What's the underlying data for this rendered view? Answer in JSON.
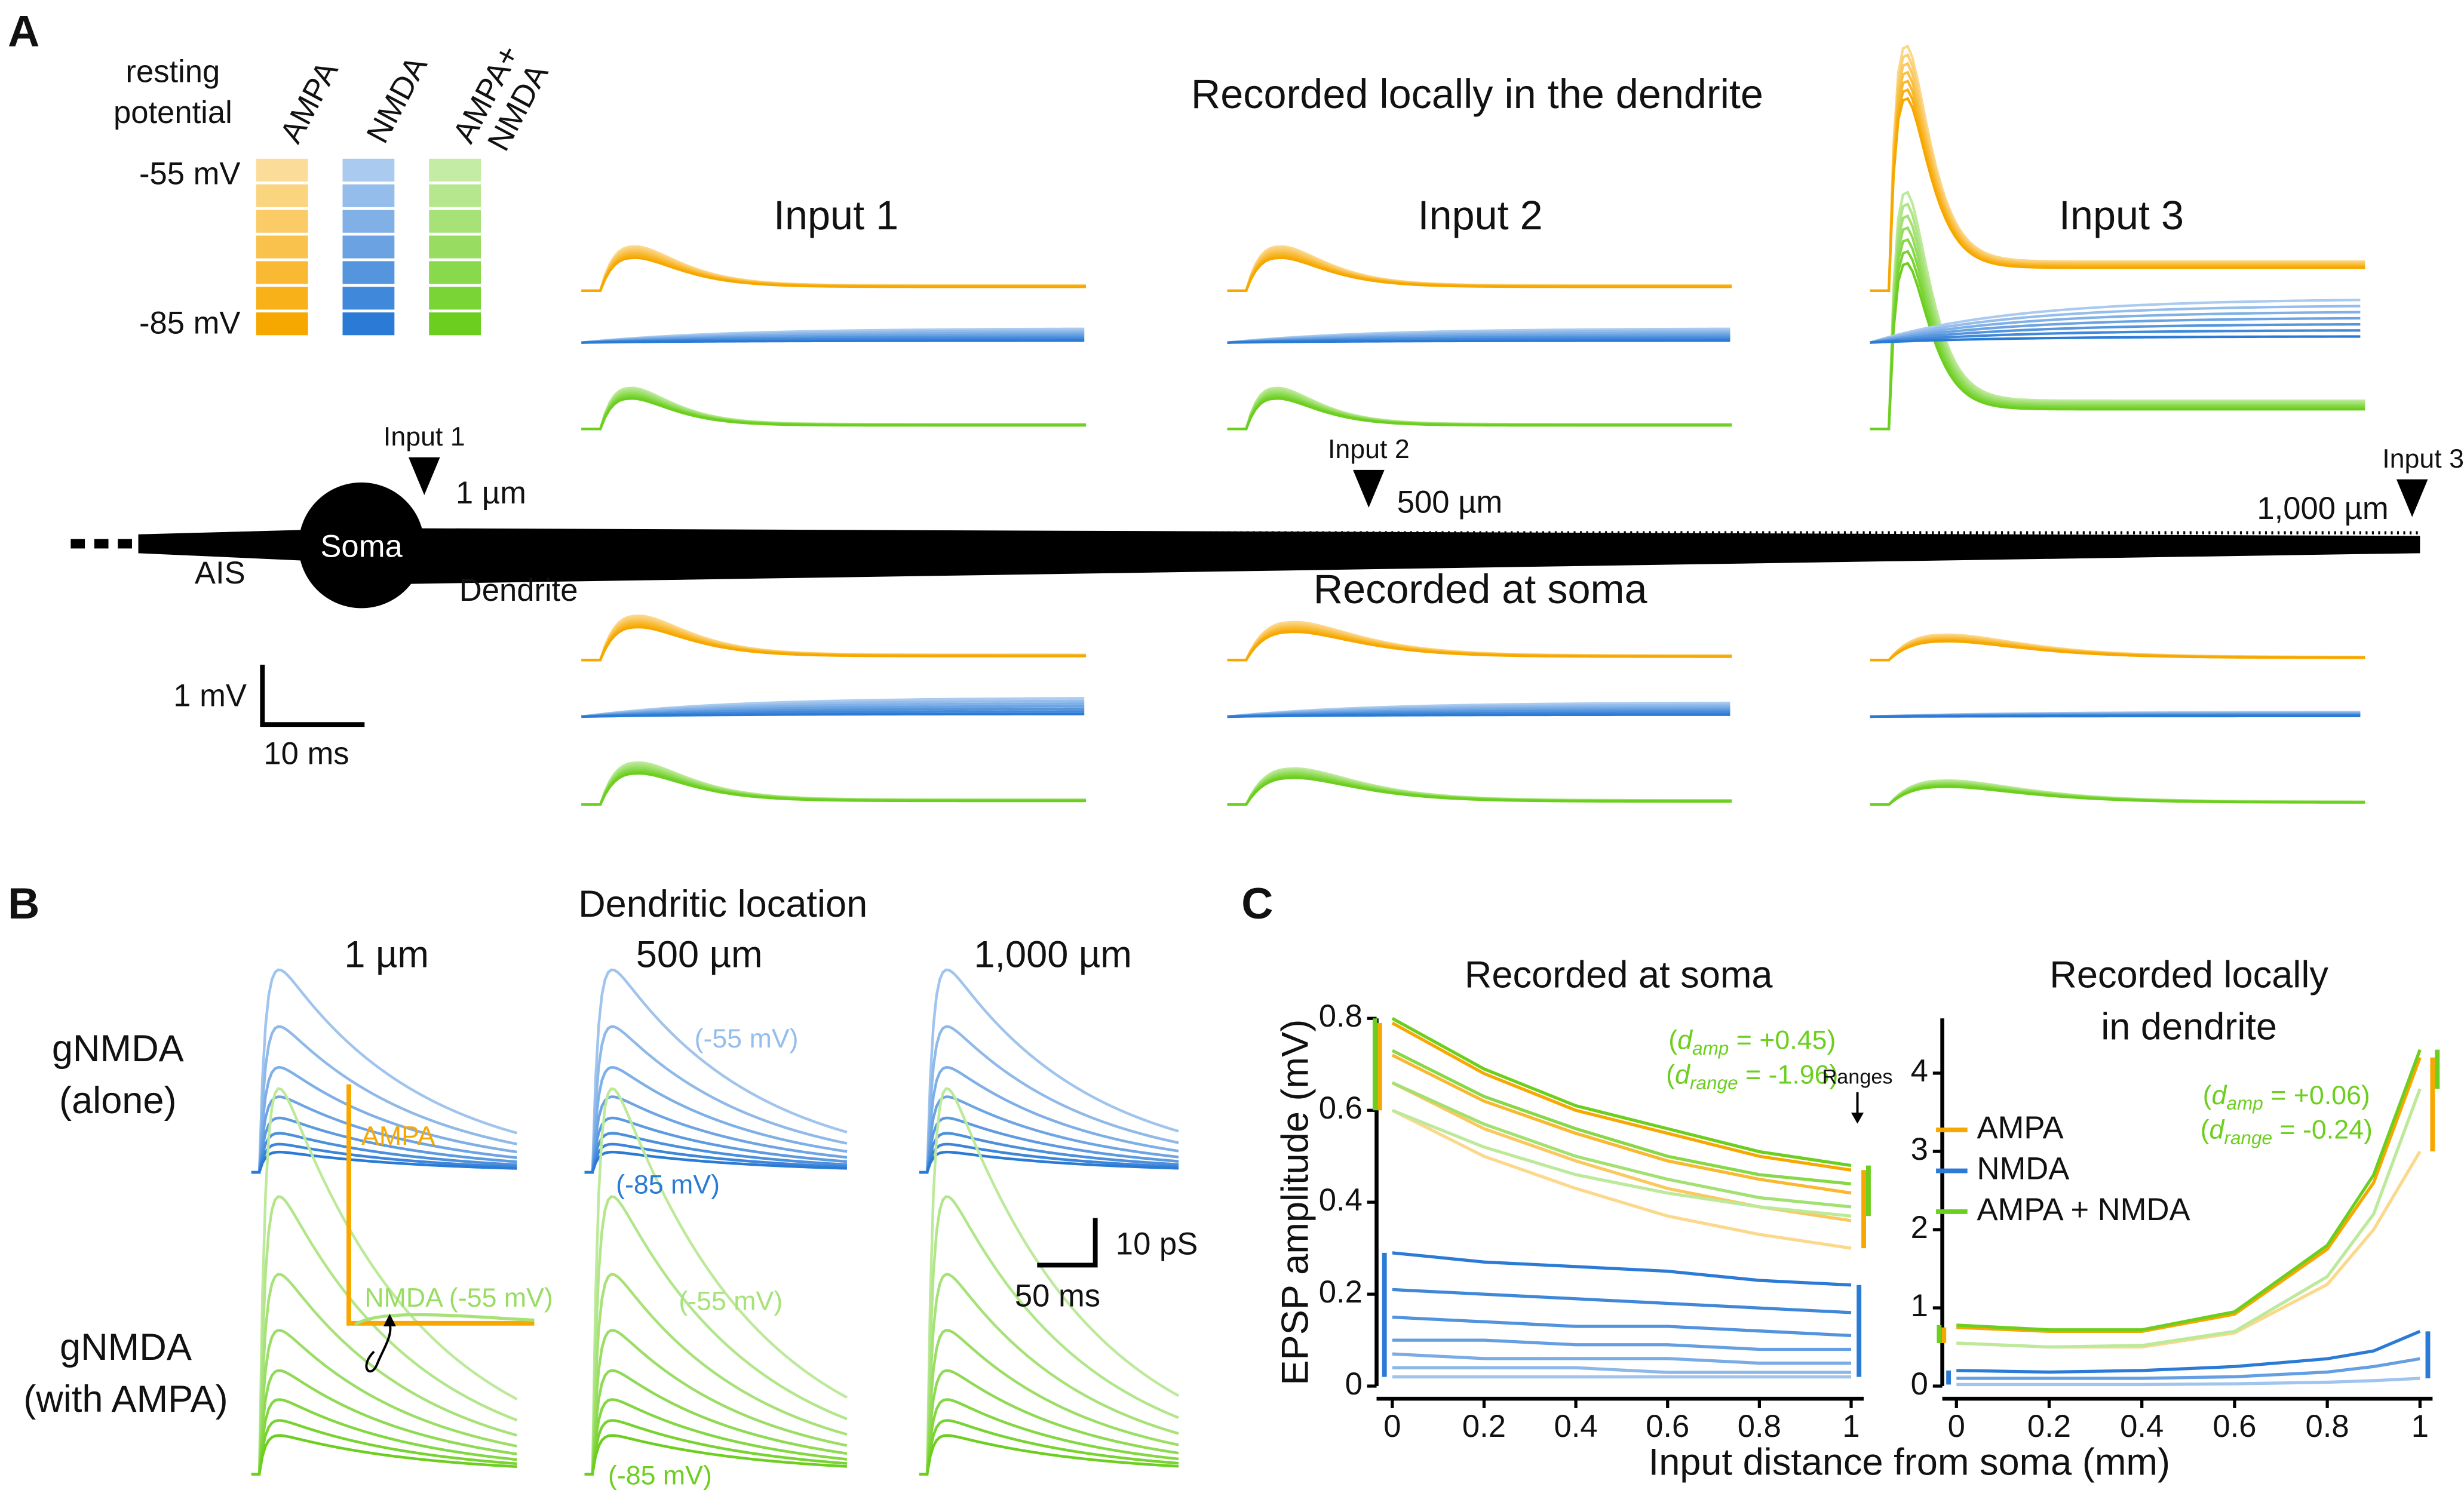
{
  "panel_a": {
    "label": "A",
    "legend_header": [
      "resting",
      "potential"
    ],
    "columns": [
      "AMPA",
      "NMDA",
      [
        "AMPA+",
        "NMDA"
      ]
    ],
    "voltages": [
      "-55 mV",
      "-85 mV"
    ],
    "title_local": "Recorded locally in the dendrite",
    "inputs": [
      "Input 1",
      "Input 2",
      "Input 3"
    ],
    "markers": [
      {
        "label": "Input 1",
        "distance": "1 µm"
      },
      {
        "label": "Input 2",
        "distance": "500 µm"
      },
      {
        "label": "Input 3",
        "distance": "1,000 µm"
      }
    ],
    "soma": "Soma",
    "ais": "AIS",
    "dendrite": "Dendrite",
    "title_soma": "Recorded at soma",
    "scale_v": "1 mV",
    "scale_t": "10 ms"
  },
  "panel_b": {
    "label": "B",
    "title": "Dendritic location",
    "locations": [
      "1 µm",
      "500 µm",
      "1,000 µm"
    ],
    "rows": [
      [
        "gNMDA",
        "(alone)"
      ],
      [
        "gNMDA",
        "(with AMPA)"
      ]
    ],
    "annotations": [
      "(-55 mV)",
      "(-85 mV)",
      "(-55 mV)",
      "(-85 mV)"
    ],
    "inset": [
      "AMPA",
      "NMDA (-55 mV)"
    ],
    "scale_g": "10 pS",
    "scale_t": "50 ms"
  },
  "panel_c": {
    "label": "C",
    "ylabel": "EPSP amplitude (mV)",
    "xlabel": "Input distance from soma (mm)",
    "ranges_label": "Ranges",
    "legend": [
      "AMPA",
      "NMDA",
      "AMPA + NMDA"
    ],
    "charts": [
      {
        "type": "line",
        "title": [
          "Recorded at soma"
        ],
        "annotation": [
          [
            "(",
            "d",
            "amp",
            " = +0.45)"
          ],
          [
            "(",
            "d",
            "range",
            " = -1.96)"
          ]
        ],
        "x": [
          0,
          0.2,
          0.4,
          0.6,
          0.8,
          1
        ],
        "xlim": [
          0,
          1
        ],
        "xticks": [
          0,
          0.2,
          0.4,
          0.6,
          0.8,
          1
        ],
        "ylim": [
          0,
          0.8
        ],
        "yticks": [
          0,
          0.2,
          0.4,
          0.6,
          0.8
        ],
        "series": [
          {
            "name": "NMDA",
            "color": "#2b7bd6",
            "curves": [
              [
                0.29,
                0.27,
                0.26,
                0.25,
                0.23,
                0.22
              ],
              [
                0.21,
                0.2,
                0.19,
                0.18,
                0.17,
                0.16
              ],
              [
                0.15,
                0.14,
                0.13,
                0.13,
                0.12,
                0.11
              ],
              [
                0.1,
                0.1,
                0.09,
                0.09,
                0.08,
                0.08
              ],
              [
                0.07,
                0.06,
                0.06,
                0.06,
                0.05,
                0.05
              ],
              [
                0.04,
                0.04,
                0.04,
                0.03,
                0.03,
                0.03
              ],
              [
                0.02,
                0.02,
                0.02,
                0.02,
                0.02,
                0.02
              ]
            ]
          },
          {
            "name": "AMPA",
            "color": "#f7a800",
            "curves": [
              [
                0.79,
                0.68,
                0.6,
                0.55,
                0.5,
                0.47
              ],
              [
                0.72,
                0.62,
                0.55,
                0.49,
                0.45,
                0.42
              ],
              [
                0.66,
                0.56,
                0.49,
                0.43,
                0.39,
                0.36
              ],
              [
                0.6,
                0.5,
                0.43,
                0.37,
                0.33,
                0.3
              ]
            ]
          },
          {
            "name": "AMPA + NMDA",
            "color": "#6ccf1f",
            "curves": [
              [
                0.8,
                0.69,
                0.61,
                0.56,
                0.51,
                0.48
              ],
              [
                0.73,
                0.63,
                0.56,
                0.5,
                0.46,
                0.44
              ],
              [
                0.66,
                0.57,
                0.5,
                0.45,
                0.41,
                0.39
              ],
              [
                0.6,
                0.52,
                0.46,
                0.42,
                0.39,
                0.37
              ]
            ]
          }
        ]
      },
      {
        "type": "line",
        "title": [
          "Recorded locally",
          "in dendrite"
        ],
        "annotation": [
          [
            "(",
            "d",
            "amp",
            " = +0.06)"
          ],
          [
            "(",
            "d",
            "range",
            " = -0.24)"
          ]
        ],
        "x": [
          0,
          0.2,
          0.4,
          0.6,
          0.8,
          0.9,
          1
        ],
        "xlim": [
          0,
          1
        ],
        "xticks": [
          0,
          0.2,
          0.4,
          0.6,
          0.8,
          1
        ],
        "ylim": [
          0,
          4.7
        ],
        "yticks": [
          0,
          1,
          2,
          3,
          4
        ],
        "series": [
          {
            "name": "NMDA",
            "color": "#2b7bd6",
            "curves": [
              [
                0.2,
                0.18,
                0.2,
                0.25,
                0.35,
                0.45,
                0.7
              ],
              [
                0.1,
                0.1,
                0.1,
                0.12,
                0.18,
                0.25,
                0.35
              ],
              [
                0.02,
                0.02,
                0.02,
                0.03,
                0.05,
                0.07,
                0.1
              ]
            ]
          },
          {
            "name": "AMPA",
            "color": "#f7a800",
            "curves": [
              [
                0.75,
                0.7,
                0.7,
                0.92,
                1.75,
                2.6,
                4.2
              ],
              [
                0.55,
                0.5,
                0.5,
                0.68,
                1.3,
                2.0,
                3.0
              ]
            ]
          },
          {
            "name": "AMPA + NMDA",
            "color": "#6ccf1f",
            "curves": [
              [
                0.78,
                0.72,
                0.72,
                0.95,
                1.8,
                2.7,
                4.3
              ],
              [
                0.55,
                0.5,
                0.52,
                0.7,
                1.4,
                2.2,
                3.8
              ]
            ]
          }
        ]
      }
    ]
  }
}
